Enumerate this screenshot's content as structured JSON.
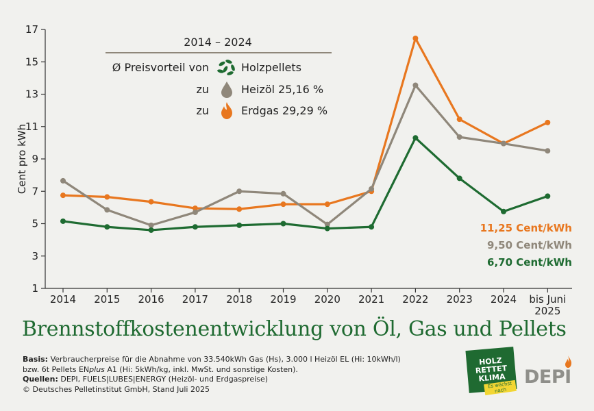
{
  "chart_data": {
    "type": "line",
    "categories": [
      "2014",
      "2015",
      "2016",
      "2017",
      "2018",
      "2019",
      "2020",
      "2021",
      "2022",
      "2023",
      "2024",
      "bis Juni 2025"
    ],
    "ylabel": "Cent pro kWh",
    "ylim": [
      1,
      17
    ],
    "yticks": [
      1,
      3,
      5,
      7,
      9,
      11,
      13,
      15,
      17
    ],
    "grid": false,
    "series": [
      {
        "name": "Erdgas",
        "color": "#e8771f",
        "values": [
          6.75,
          6.65,
          6.35,
          5.95,
          5.9,
          6.2,
          6.2,
          7.0,
          16.45,
          11.45,
          9.95,
          11.25
        ]
      },
      {
        "name": "Heizöl",
        "color": "#8f877a",
        "values": [
          7.65,
          5.85,
          4.9,
          5.7,
          7.0,
          6.85,
          4.95,
          7.15,
          13.55,
          10.35,
          9.95,
          9.5
        ]
      },
      {
        "name": "Holzpellets",
        "color": "#1e6b31",
        "values": [
          5.15,
          4.8,
          4.6,
          4.8,
          4.9,
          5.0,
          4.7,
          4.8,
          10.3,
          7.8,
          5.75,
          6.7
        ]
      }
    ],
    "end_labels": [
      {
        "text": "11,25 Cent/kWh",
        "color": "#e8771f"
      },
      {
        "text": "9,50 Cent/kWh",
        "color": "#8f877a"
      },
      {
        "text": "6,70 Cent/kWh",
        "color": "#1e6b31"
      }
    ],
    "legend": {
      "period": "2014 – 2024",
      "line1_prefix": "Ø Preisvorteil von",
      "line1_name": "Holzpellets",
      "line2_prefix": "zu",
      "line2_name": "Heizöl 25,16 %",
      "line3_prefix": "zu",
      "line3_name": "Erdgas 29,29 %",
      "placement": "top-left"
    },
    "title": "Brennstoffkostenentwicklung von Öl, Gas und Pellets"
  },
  "footnote": {
    "basis_label": "Basis:",
    "basis_text": "Verbraucherpreise für die Abnahme von 33.540kWh Gas (Hs), 3.000 l Heizöl EL (Hi: 10kWh/l)",
    "basis_line2_pre": "bzw. 6t Pellets EN",
    "basis_line2_italic": "plus",
    "basis_line2_post": "A1 (Hi: 5kWh/kg, inkl. MwSt. und sonstige Kosten).",
    "sources_label": "Quellen:",
    "sources_text": "DEPI, FUELS|LUBES|ENERGY (Heizöl- und Erdgaspreise)",
    "copyright": "© Deutsches Pelletinstitut GmbH, Stand Juli 2025"
  },
  "badge": {
    "line1": "HOLZ",
    "line2": "RETTET",
    "line3": "KLIMA",
    "sub": "Es wächst nach"
  },
  "logo": {
    "text": "DEPI"
  },
  "colors": {
    "gas": "#e8771f",
    "oil": "#8f877a",
    "pellets": "#1e6b31",
    "title": "#1f6a31",
    "background": "#f1f1ee"
  }
}
